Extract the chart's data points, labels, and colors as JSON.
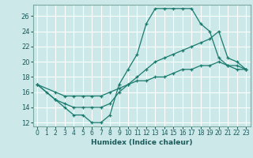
{
  "xlabel": "Humidex (Indice chaleur)",
  "bg_color": "#cce8e8",
  "grid_color": "#b8d8d8",
  "line_color": "#1a7a6e",
  "xlim": [
    -0.5,
    23.5
  ],
  "ylim": [
    11.5,
    27.5
  ],
  "xticks": [
    0,
    1,
    2,
    3,
    4,
    5,
    6,
    7,
    8,
    9,
    10,
    11,
    12,
    13,
    14,
    15,
    16,
    17,
    18,
    19,
    20,
    21,
    22,
    23
  ],
  "yticks": [
    12,
    14,
    16,
    18,
    20,
    22,
    24,
    26
  ],
  "line1_x": [
    0,
    1,
    2,
    3,
    4,
    5,
    6,
    7,
    8,
    9,
    10,
    11,
    12,
    13,
    14,
    15,
    16,
    17,
    18,
    19,
    20,
    21,
    22,
    23
  ],
  "line1_y": [
    17,
    16,
    15,
    14,
    13,
    13,
    12,
    12,
    13,
    17,
    19,
    21,
    25,
    27,
    27,
    27,
    27,
    27,
    25,
    24,
    20.5,
    19.5,
    19,
    19
  ],
  "line2_x": [
    0,
    2,
    3,
    4,
    5,
    6,
    7,
    8,
    9,
    10,
    11,
    12,
    13,
    14,
    15,
    16,
    17,
    18,
    19,
    20,
    21,
    22,
    23
  ],
  "line2_y": [
    17,
    15,
    14.5,
    14,
    14,
    14,
    14,
    14.5,
    16,
    17,
    18,
    19,
    20,
    20.5,
    21,
    21.5,
    22,
    22.5,
    23,
    24,
    20.5,
    20,
    19
  ],
  "line3_x": [
    0,
    2,
    3,
    4,
    5,
    6,
    7,
    8,
    9,
    10,
    11,
    12,
    13,
    14,
    15,
    16,
    17,
    18,
    19,
    20,
    21,
    22,
    23
  ],
  "line3_y": [
    17,
    16,
    15.5,
    15.5,
    15.5,
    15.5,
    15.5,
    16,
    16.5,
    17,
    17.5,
    17.5,
    18,
    18,
    18.5,
    19,
    19,
    19.5,
    19.5,
    20,
    19.5,
    19.5,
    19
  ]
}
